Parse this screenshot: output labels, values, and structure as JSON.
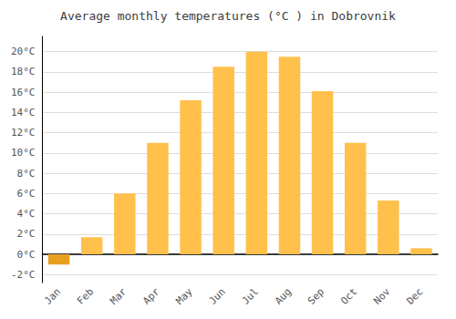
{
  "chart_data": {
    "type": "bar",
    "title": "Average monthly temperatures (°C ) in Dobrovnik",
    "categories": [
      "Jan",
      "Feb",
      "Mar",
      "Apr",
      "May",
      "Jun",
      "Jul",
      "Aug",
      "Sep",
      "Oct",
      "Nov",
      "Dec"
    ],
    "values": [
      -1.0,
      1.7,
      6.0,
      11.0,
      15.2,
      18.5,
      20.0,
      19.5,
      16.1,
      11.0,
      5.3,
      0.6
    ],
    "colors": [
      "#E8A020",
      "#FFC04C",
      "#FFC04C",
      "#FFC04C",
      "#FFC04C",
      "#FFC04C",
      "#FFC04C",
      "#FFC04C",
      "#FFC04C",
      "#FFC04C",
      "#FFC04C",
      "#FFC04C"
    ],
    "ylim": [
      -2.8,
      21.5
    ],
    "yticks": [
      {
        "value": -2,
        "label": "-2°C"
      },
      {
        "value": 0,
        "label": "0°C"
      },
      {
        "value": 2,
        "label": "2°C"
      },
      {
        "value": 4,
        "label": "4°C"
      },
      {
        "value": 6,
        "label": "6°C"
      },
      {
        "value": 8,
        "label": "8°C"
      },
      {
        "value": 10,
        "label": "10°C"
      },
      {
        "value": 12,
        "label": "12°C"
      },
      {
        "value": 14,
        "label": "14°C"
      },
      {
        "value": 16,
        "label": "16°C"
      },
      {
        "value": 18,
        "label": "18°C"
      },
      {
        "value": 20,
        "label": "20°C"
      }
    ],
    "grid": true
  }
}
